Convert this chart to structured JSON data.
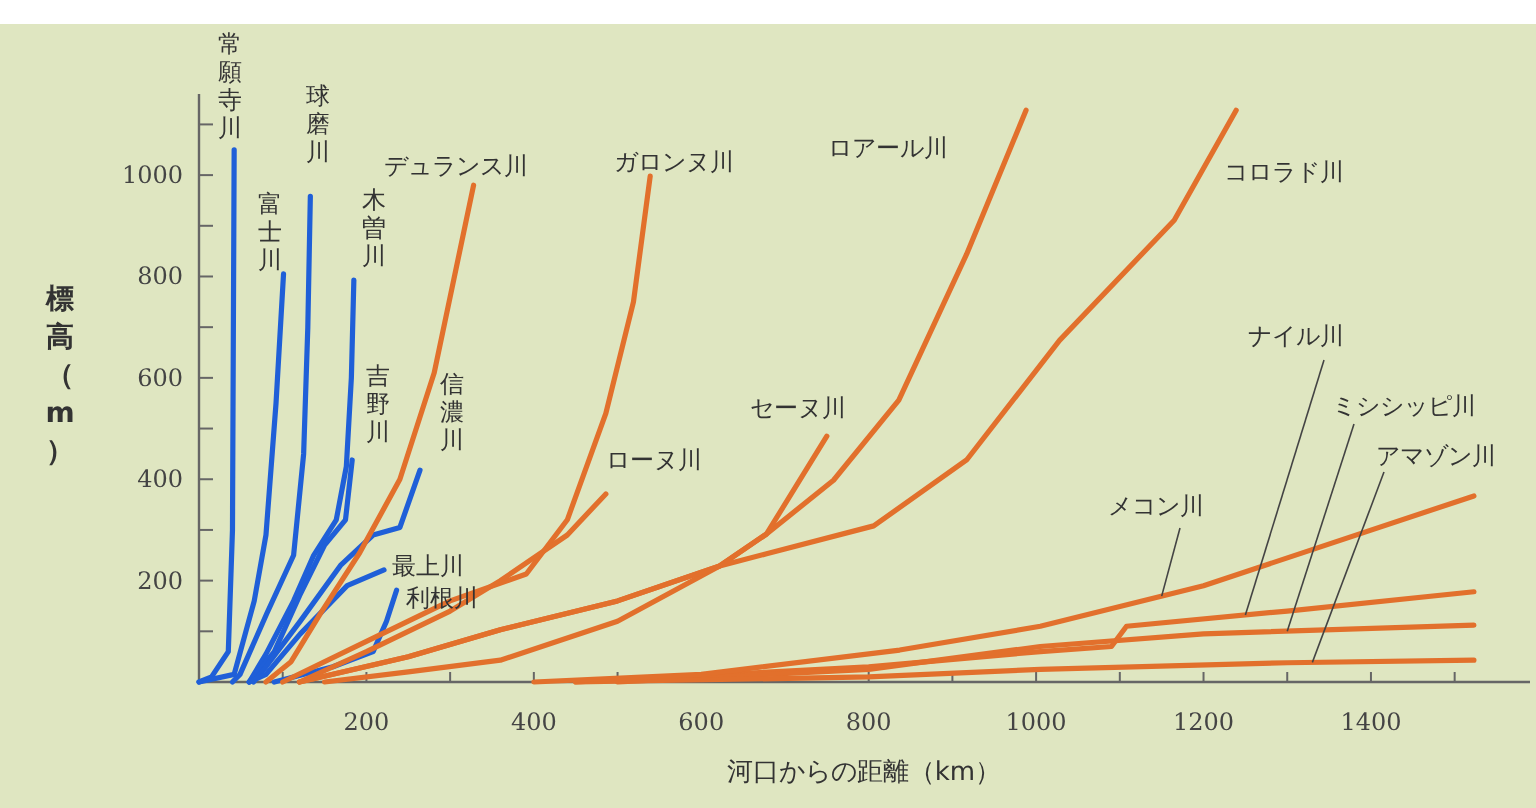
{
  "chart_data": {
    "type": "line",
    "xlabel": "河口からの距離（km）",
    "ylabel": "標高（m）",
    "xlim": [
      0,
      1590
    ],
    "ylim": [
      0,
      1160
    ],
    "xticks": [
      {
        "value": 100,
        "label": null
      },
      200,
      {
        "value": 300,
        "label": null
      },
      400,
      {
        "value": 500,
        "label": null
      },
      600,
      {
        "value": 700,
        "label": null
      },
      800,
      {
        "value": 900,
        "label": null
      },
      1000,
      {
        "value": 1100,
        "label": null
      },
      1200,
      {
        "value": 1300,
        "label": null
      },
      1400,
      {
        "value": 1500,
        "label": null
      }
    ],
    "yticks": [
      {
        "value": 100,
        "label": null
      },
      200,
      {
        "value": 300,
        "label": null
      },
      400,
      {
        "value": 500,
        "label": null
      },
      600,
      {
        "value": 700,
        "label": null
      },
      800,
      {
        "value": 900,
        "label": null
      },
      1000,
      {
        "value": 1100,
        "label": null
      }
    ],
    "grid": false,
    "marker": "none",
    "line_style": "solid",
    "series": [
      {
        "name": "常願寺川",
        "color": "#1f5fd8",
        "x": [
          0,
          15,
          35,
          40,
          42
        ],
        "values": [
          0,
          10,
          60,
          300,
          1050
        ]
      },
      {
        "name": "富士川",
        "color": "#1f5fd8",
        "x": [
          0,
          42,
          66,
          80,
          92,
          101
        ],
        "values": [
          0,
          15,
          160,
          290,
          550,
          805
        ]
      },
      {
        "name": "球磨川",
        "color": "#1f5fd8",
        "x": [
          40,
          49,
          81,
          113,
          125,
          130,
          133
        ],
        "values": [
          0,
          15,
          135,
          250,
          450,
          700,
          958
        ]
      },
      {
        "name": "木曽川",
        "color": "#1f5fd8",
        "x": [
          60,
          80,
          113,
          137,
          164,
          176,
          182,
          185
        ],
        "values": [
          0,
          55,
          160,
          250,
          320,
          425,
          600,
          793
        ]
      },
      {
        "name": "吉野川",
        "color": "#1f5fd8",
        "x": [
          60,
          90,
          120,
          150,
          175,
          183
        ],
        "values": [
          0,
          60,
          170,
          270,
          320,
          438
        ]
      },
      {
        "name": "信濃川",
        "color": "#1f5fd8",
        "x": [
          65,
          80,
          121,
          169,
          208,
          240,
          264
        ],
        "values": [
          0,
          30,
          120,
          230,
          290,
          305,
          418
        ]
      },
      {
        "name": "最上川",
        "color": "#1f5fd8",
        "x": [
          60,
          80,
          121,
          177,
          221
        ],
        "values": [
          0,
          15,
          95,
          190,
          221
        ]
      },
      {
        "name": "利根川",
        "color": "#1f5fd8",
        "x": [
          90,
          160,
          208,
          224,
          236
        ],
        "values": [
          0,
          30,
          60,
          120,
          181
        ]
      },
      {
        "name": "デュランス川",
        "color": "#e2702c",
        "x": [
          80,
          110,
          145,
          192,
          240,
          281,
          328
        ],
        "values": [
          0,
          40,
          135,
          255,
          400,
          610,
          980
        ]
      },
      {
        "name": "ガロンヌ川",
        "color": "#e2702c",
        "x": [
          100,
          200,
          300,
          391,
          440,
          486,
          519,
          539
        ],
        "values": [
          0,
          80,
          160,
          213,
          320,
          530,
          750,
          998
        ]
      },
      {
        "name": "ロアール川",
        "color": "#e2702c",
        "x": [
          120,
          250,
          360,
          500,
          622,
          678,
          758,
          836,
          917,
          988
        ],
        "values": [
          0,
          50,
          103,
          160,
          229,
          292,
          398,
          556,
          844,
          1128
        ]
      },
      {
        "name": "ローヌ川",
        "color": "#e2702c",
        "x": [
          120,
          200,
          300,
          360,
          440,
          486
        ],
        "values": [
          0,
          60,
          140,
          200,
          290,
          371
        ]
      },
      {
        "name": "セーヌ川",
        "color": "#e2702c",
        "x": [
          150,
          250,
          360,
          500,
          622,
          678,
          750
        ],
        "values": [
          0,
          20,
          43,
          120,
          229,
          292,
          485
        ]
      },
      {
        "name": "コロラド川",
        "color": "#e2702c",
        "x": [
          120,
          250,
          360,
          500,
          622,
          678,
          806,
          917,
          1028,
          1165,
          1239
        ],
        "values": [
          0,
          50,
          103,
          160,
          229,
          253,
          308,
          438,
          674,
          911,
          1128
        ]
      },
      {
        "name": "ナイル川",
        "color": "#e2702c",
        "x": [
          450,
          800,
          1005,
          1090,
          1108,
          1300,
          1523
        ],
        "values": [
          0,
          30,
          60,
          70,
          110,
          140,
          178
        ]
      },
      {
        "name": "ミシシッピ川",
        "color": "#e2702c",
        "x": [
          500,
          800,
          1005,
          1200,
          1523
        ],
        "values": [
          0,
          25,
          70,
          95,
          112
        ]
      },
      {
        "name": "アマゾン川",
        "color": "#e2702c",
        "x": [
          450,
          800,
          1005,
          1300,
          1523
        ],
        "values": [
          0,
          10,
          25,
          38,
          43
        ]
      },
      {
        "name": "メコン川",
        "color": "#e2702c",
        "x": [
          400,
          600,
          837,
          1005,
          1200,
          1523
        ],
        "values": [
          0,
          15,
          63,
          110,
          190,
          367
        ]
      }
    ]
  }
}
